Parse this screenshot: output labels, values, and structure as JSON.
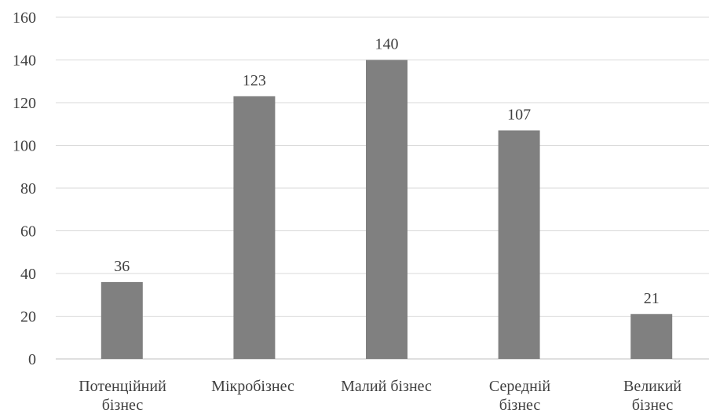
{
  "chart_data": {
    "type": "bar",
    "categories": [
      [
        "Потенційний",
        "бізнес"
      ],
      [
        "Мікробізнес"
      ],
      [
        "Малий бізнес"
      ],
      [
        "Середній",
        "бізнес"
      ],
      [
        "Великий",
        "бізнес"
      ]
    ],
    "values": [
      36,
      123,
      140,
      107,
      21
    ],
    "data_labels": [
      "36",
      "123",
      "140",
      "107",
      "21"
    ],
    "y_ticks": [
      "0",
      "20",
      "40",
      "60",
      "80",
      "100",
      "120",
      "140",
      "160"
    ],
    "ylim": [
      0,
      160
    ],
    "grid": true,
    "legend": false,
    "bar_color": "#808080"
  }
}
